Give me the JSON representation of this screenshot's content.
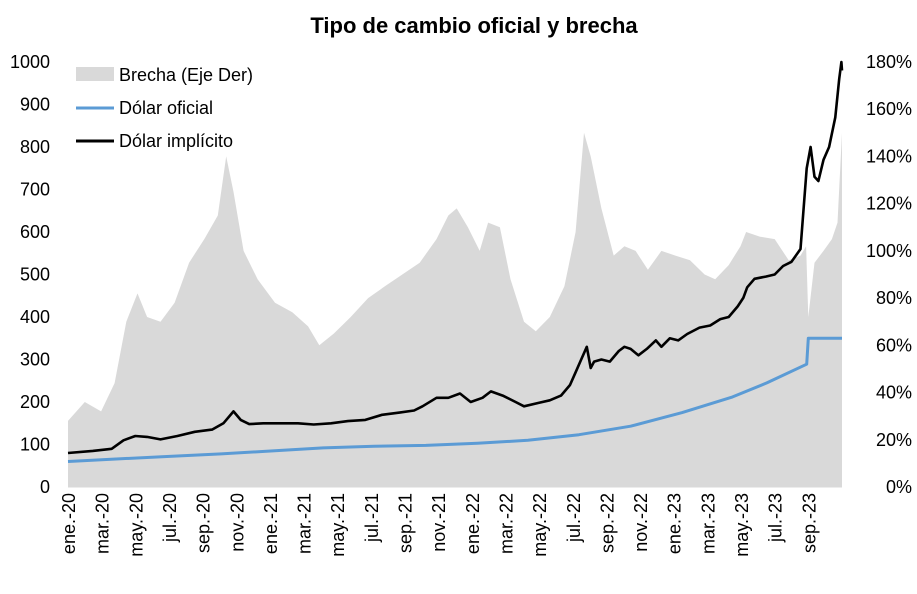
{
  "chart_data": {
    "type": "line",
    "title": "Tipo de cambio oficial y brecha",
    "x_labels": [
      "ene.-20",
      "mar.-20",
      "may.-20",
      "jul.-20",
      "sep.-20",
      "nov.-20",
      "ene.-21",
      "mar.-21",
      "may.-21",
      "jul.-21",
      "sep.-21",
      "nov.-21",
      "ene.-22",
      "mar.-22",
      "may.-22",
      "jul.-22",
      "sep.-22",
      "nov.-22",
      "ene.-23",
      "mar.-23",
      "may.-23",
      "jul.-23",
      "sep.-23"
    ],
    "x_range": [
      "2020-01-02",
      "2023-10-13"
    ],
    "y_left": {
      "ticks": [
        "0",
        "100",
        "200",
        "300",
        "400",
        "500",
        "600",
        "700",
        "800",
        "900",
        "1000"
      ],
      "ylim": [
        0,
        1000
      ]
    },
    "y_right": {
      "ticks": [
        "0%",
        "20%",
        "40%",
        "60%",
        "80%",
        "100%",
        "120%",
        "140%",
        "160%",
        "180%"
      ],
      "ylim": [
        0,
        180
      ]
    },
    "legend": {
      "position": "top-left",
      "items": [
        {
          "label": "Brecha (Eje Der)",
          "color": "#d9d9d9",
          "kind": "area"
        },
        {
          "label": "Dólar oficial",
          "color": "#5b9bd5",
          "kind": "line"
        },
        {
          "label": "Dólar implícito",
          "color": "#000000",
          "kind": "line"
        }
      ]
    },
    "series": [
      {
        "name": "Brecha (Eje Der)",
        "axis": "right",
        "type": "area",
        "color": "#d9d9d9",
        "x": [
          "2020-01-02",
          "2020-02-01",
          "2020-03-01",
          "2020-03-25",
          "2020-04-15",
          "2020-05-05",
          "2020-05-22",
          "2020-06-15",
          "2020-07-10",
          "2020-08-05",
          "2020-09-01",
          "2020-09-25",
          "2020-10-10",
          "2020-10-23",
          "2020-11-10",
          "2020-12-05",
          "2021-01-05",
          "2021-02-05",
          "2021-03-05",
          "2021-03-25",
          "2021-04-20",
          "2021-05-20",
          "2021-06-20",
          "2021-07-20",
          "2021-08-20",
          "2021-09-20",
          "2021-10-20",
          "2021-11-10",
          "2021-11-25",
          "2021-12-15",
          "2022-01-05",
          "2022-01-20",
          "2022-02-10",
          "2022-03-01",
          "2022-03-25",
          "2022-04-15",
          "2022-05-10",
          "2022-06-05",
          "2022-06-25",
          "2022-07-10",
          "2022-07-22",
          "2022-08-10",
          "2022-09-01",
          "2022-09-20",
          "2022-10-10",
          "2022-11-01",
          "2022-11-25",
          "2022-12-20",
          "2023-01-15",
          "2023-02-10",
          "2023-03-01",
          "2023-03-25",
          "2023-04-15",
          "2023-04-25",
          "2023-05-20",
          "2023-06-15",
          "2023-07-10",
          "2023-07-31",
          "2023-08-10",
          "2023-08-14",
          "2023-08-25",
          "2023-09-10",
          "2023-09-25",
          "2023-10-05",
          "2023-10-13"
        ],
        "values": [
          28,
          36,
          32,
          44,
          70,
          82,
          72,
          70,
          78,
          95,
          105,
          115,
          140,
          125,
          100,
          88,
          78,
          74,
          68,
          60,
          65,
          72,
          80,
          85,
          90,
          95,
          105,
          115,
          118,
          110,
          100,
          112,
          110,
          88,
          70,
          66,
          72,
          85,
          108,
          150,
          140,
          118,
          98,
          102,
          100,
          92,
          100,
          98,
          96,
          90,
          88,
          94,
          102,
          108,
          106,
          105,
          96,
          98,
          102,
          72,
          95,
          100,
          105,
          112,
          150
        ]
      },
      {
        "name": "Dólar oficial",
        "axis": "left",
        "type": "line",
        "color": "#5b9bd5",
        "x": [
          "2020-01-02",
          "2020-04-01",
          "2020-07-01",
          "2020-10-01",
          "2021-01-01",
          "2021-04-01",
          "2021-07-01",
          "2021-10-01",
          "2022-01-01",
          "2022-04-01",
          "2022-07-01",
          "2022-10-01",
          "2023-01-01",
          "2023-04-01",
          "2023-06-01",
          "2023-08-11",
          "2023-08-14",
          "2023-10-13"
        ],
        "values": [
          60,
          66,
          72,
          78,
          85,
          92,
          96,
          98,
          103,
          110,
          123,
          143,
          175,
          212,
          245,
          289,
          350,
          350
        ]
      },
      {
        "name": "Dólar implícito",
        "axis": "left",
        "type": "line",
        "color": "#000000",
        "x": [
          "2020-01-02",
          "2020-02-15",
          "2020-03-20",
          "2020-04-10",
          "2020-05-01",
          "2020-05-22",
          "2020-06-15",
          "2020-07-15",
          "2020-08-15",
          "2020-09-15",
          "2020-10-05",
          "2020-10-23",
          "2020-11-05",
          "2020-11-20",
          "2020-12-15",
          "2021-01-20",
          "2021-02-15",
          "2021-03-15",
          "2021-04-15",
          "2021-05-15",
          "2021-06-15",
          "2021-07-15",
          "2021-08-15",
          "2021-09-10",
          "2021-09-25",
          "2021-10-20",
          "2021-11-10",
          "2021-12-01",
          "2021-12-20",
          "2022-01-10",
          "2022-01-25",
          "2022-02-15",
          "2022-03-10",
          "2022-03-25",
          "2022-04-20",
          "2022-05-10",
          "2022-05-30",
          "2022-06-15",
          "2022-06-25",
          "2022-07-05",
          "2022-07-15",
          "2022-07-22",
          "2022-07-28",
          "2022-08-10",
          "2022-08-25",
          "2022-09-10",
          "2022-09-20",
          "2022-10-01",
          "2022-10-15",
          "2022-10-30",
          "2022-11-15",
          "2022-11-25",
          "2022-12-10",
          "2022-12-25",
          "2023-01-10",
          "2023-02-01",
          "2023-02-20",
          "2023-03-10",
          "2023-03-25",
          "2023-04-10",
          "2023-04-20",
          "2023-04-27",
          "2023-05-10",
          "2023-05-30",
          "2023-06-15",
          "2023-06-30",
          "2023-07-15",
          "2023-07-31",
          "2023-08-11",
          "2023-08-18",
          "2023-08-25",
          "2023-09-01",
          "2023-09-10",
          "2023-09-20",
          "2023-10-01",
          "2023-10-08",
          "2023-10-12",
          "2023-10-13"
        ],
        "values": [
          80,
          85,
          90,
          110,
          120,
          118,
          112,
          120,
          130,
          135,
          150,
          178,
          158,
          148,
          150,
          150,
          150,
          147,
          150,
          155,
          158,
          170,
          175,
          180,
          190,
          210,
          210,
          220,
          200,
          210,
          225,
          215,
          200,
          190,
          198,
          204,
          215,
          240,
          270,
          300,
          330,
          280,
          295,
          300,
          295,
          320,
          330,
          325,
          310,
          325,
          345,
          330,
          350,
          345,
          360,
          375,
          380,
          395,
          400,
          425,
          445,
          470,
          490,
          495,
          500,
          520,
          530,
          560,
          750,
          800,
          730,
          720,
          770,
          800,
          870,
          960,
          1000,
          980
        ]
      }
    ]
  }
}
